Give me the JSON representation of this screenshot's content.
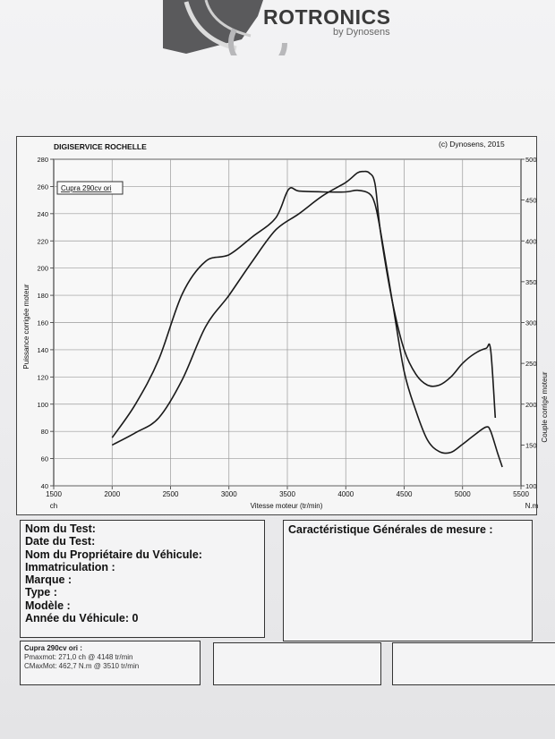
{
  "header": {
    "brand": "ROTRONICS",
    "brand_sub": "by Dynosens"
  },
  "chart_header": {
    "left": "DIGISERVICE ROCHELLE",
    "right": "(c) Dynosens, 2015"
  },
  "chart_data": {
    "type": "line",
    "xlabel": "Vitesse moteur (tr/min)",
    "x_unit": "ch",
    "right_unit": "N.m",
    "ylabel": "Puissance corrigée moteur",
    "y2label": "Couple corrigé moteur",
    "xlim": [
      1500,
      5500
    ],
    "ylim": [
      40,
      280
    ],
    "y2lim": [
      100,
      500
    ],
    "x_ticks": [
      "1500",
      "2000",
      "2500",
      "3000",
      "3500",
      "4000",
      "4500",
      "5000",
      "5500"
    ],
    "y_ticks": [
      "40",
      "60",
      "80",
      "100",
      "120",
      "140",
      "160",
      "180",
      "200",
      "220",
      "240",
      "260",
      "280"
    ],
    "y2_ticks": [
      "100",
      "150",
      "200",
      "250",
      "300",
      "350",
      "400",
      "450",
      "500"
    ],
    "legend": "Cupra 290cv ori",
    "grid": true,
    "series": [
      {
        "axis": "left",
        "x": [
          2000,
          2200,
          2400,
          2600,
          2800,
          3000,
          3200,
          3400,
          3600,
          3800,
          4000,
          4100,
          4150,
          4200,
          4250,
          4300,
          4400,
          4500,
          4600,
          4700,
          4800,
          4900,
          5000,
          5100,
          5200,
          5240,
          5280
        ],
        "values": [
          70,
          79,
          90,
          118,
          157,
          180,
          205,
          228,
          240,
          253,
          263,
          270,
          271,
          270,
          262,
          225,
          175,
          140,
          122,
          114,
          114,
          120,
          130,
          137,
          141,
          140,
          90
        ]
      },
      {
        "axis": "right",
        "x": [
          2000,
          2200,
          2400,
          2600,
          2800,
          3000,
          3200,
          3400,
          3510,
          3600,
          3800,
          4000,
          4100,
          4200,
          4250,
          4300,
          4400,
          4500,
          4600,
          4700,
          4800,
          4900,
          5000,
          5100,
          5200,
          5240,
          5300,
          5340
        ],
        "values": [
          159,
          200,
          255,
          335,
          375,
          383,
          405,
          428,
          463,
          461,
          460,
          460,
          462,
          458,
          445,
          410,
          325,
          240,
          192,
          156,
          142,
          141,
          151,
          162,
          172,
          167,
          140,
          123
        ]
      }
    ]
  },
  "test_info": {
    "lines": [
      "Nom du Test:",
      "Date du Test:",
      "Nom du Propriétaire du Véhicule:",
      "Immatriculation  :",
      "Marque  :",
      "Type  :",
      "Modèle  :",
      "Année du Véhicule: 0"
    ]
  },
  "characteristics": {
    "title": "Caractéristique Générales de mesure :"
  },
  "summary": {
    "name": "Cupra 290cv ori :",
    "pmax": "Pmaxmot: 271,0 ch @ 4148 tr/min",
    "cmax": "CMaxMot: 462,7 N.m @ 3510 tr/min"
  }
}
